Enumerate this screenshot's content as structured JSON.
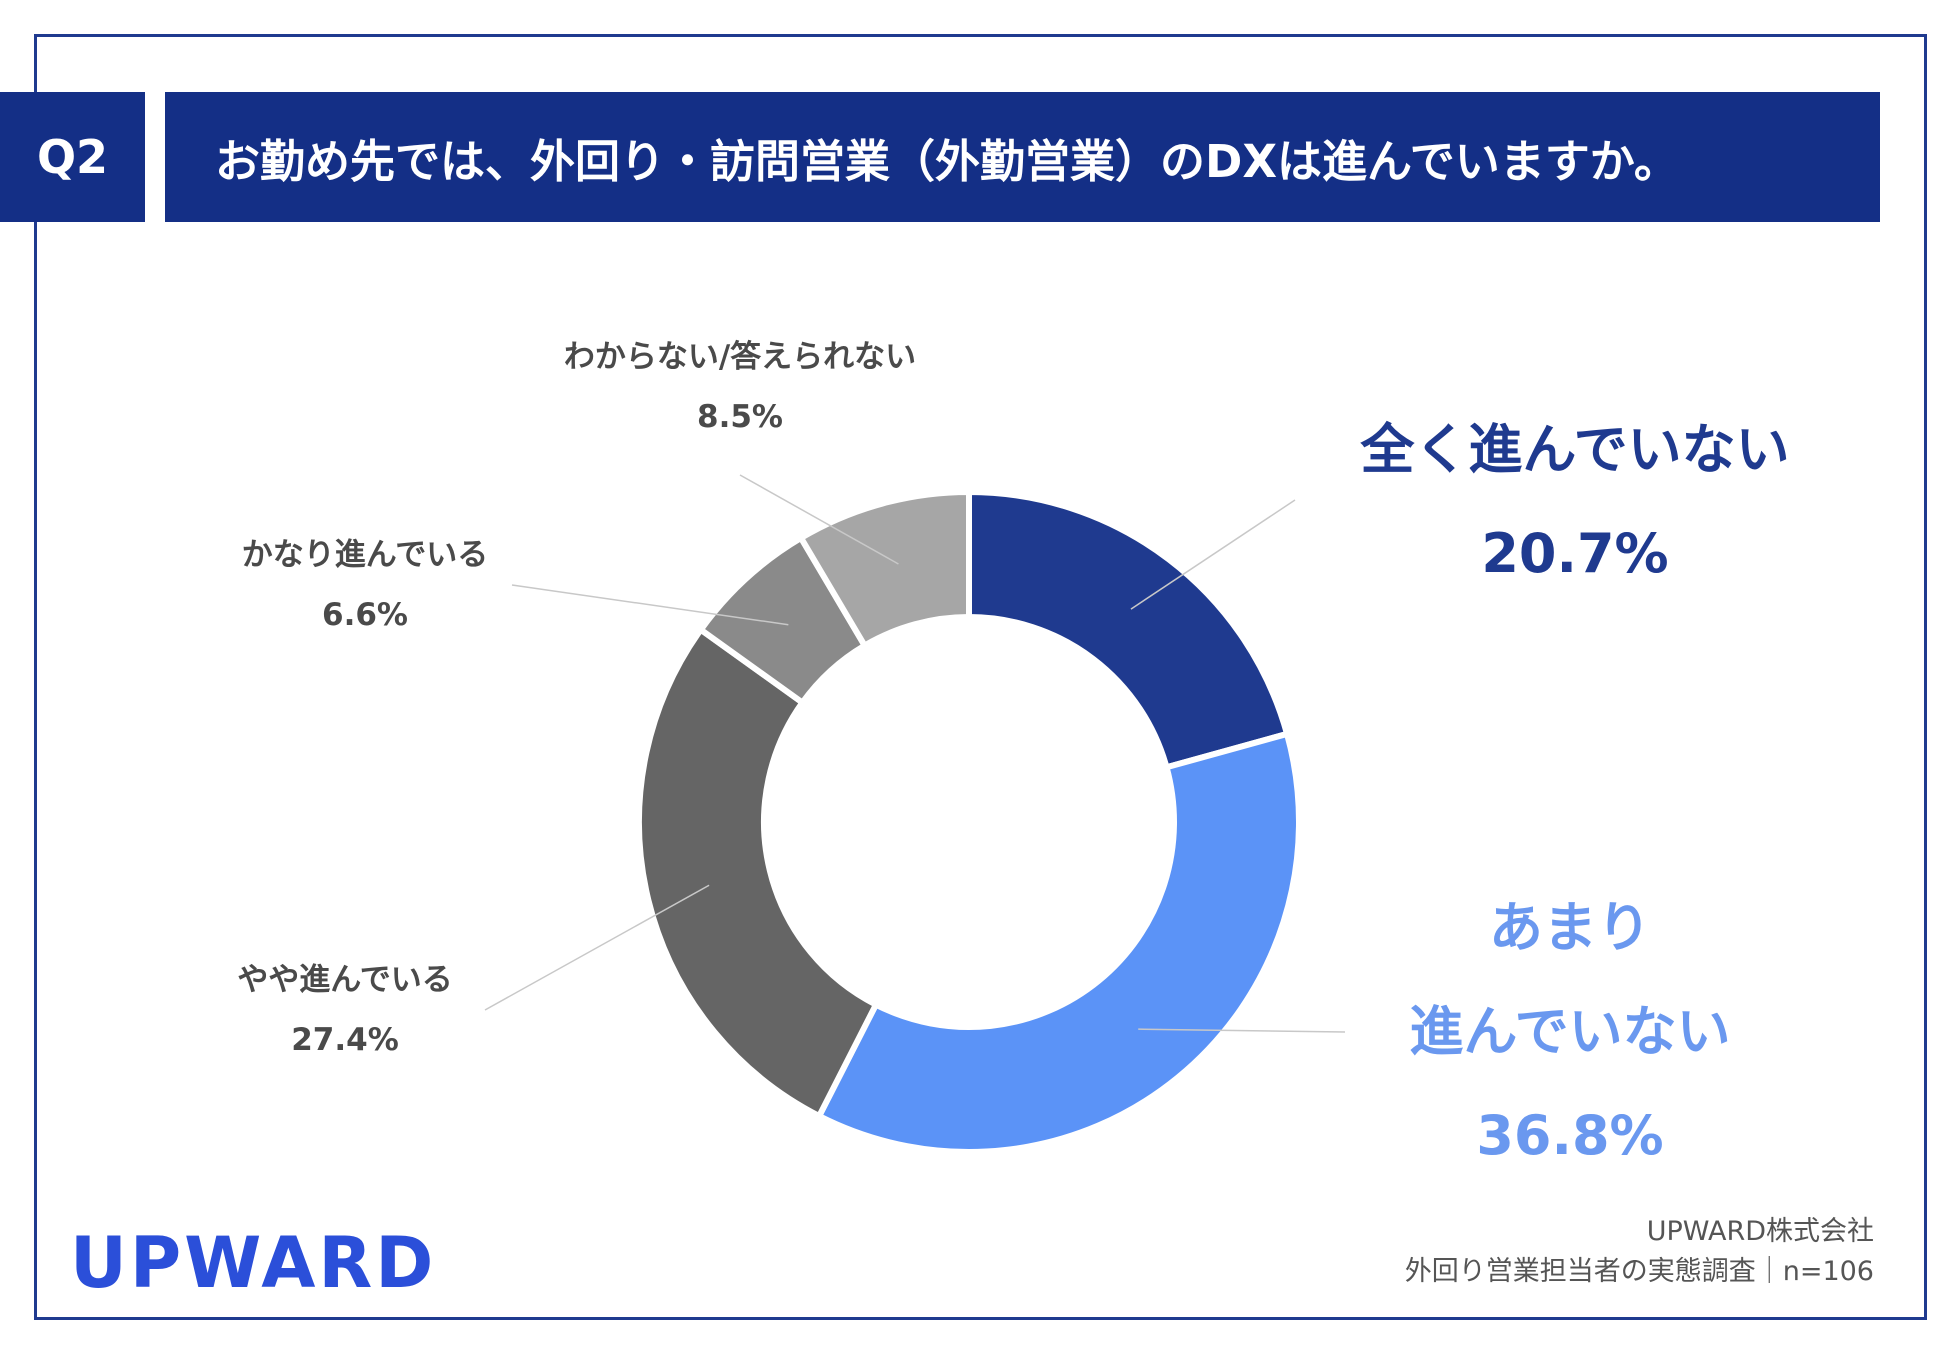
{
  "header": {
    "question_label": "Q2",
    "title": "お勤め先では、外回り・訪問営業（外勤営業）のDXは進んでいますか。"
  },
  "chart_data": {
    "type": "pie",
    "subtype": "donut",
    "slices": [
      {
        "label": "全く進んでいない",
        "value": 20.7,
        "display": "20.7%",
        "color": "#1f3a8f"
      },
      {
        "label": "あまり 進んでいない",
        "label_lines": [
          "あまり",
          "進んでいない"
        ],
        "value": 36.8,
        "display": "36.8%",
        "color": "#5b93f7"
      },
      {
        "label": "やや進んでいる",
        "value": 27.4,
        "display": "27.4%",
        "color": "#656565"
      },
      {
        "label": "かなり進んでいる",
        "value": 6.6,
        "display": "6.6%",
        "color": "#8a8a8a"
      },
      {
        "label": "わからない/答えられない",
        "value": 8.5,
        "display": "8.5%",
        "color": "#a6a6a6"
      }
    ]
  },
  "footer": {
    "logo": "UPWARD",
    "source_line1": "UPWARD株式会社",
    "source_line2": "外回り営業担当者の実態調査｜n=106"
  }
}
